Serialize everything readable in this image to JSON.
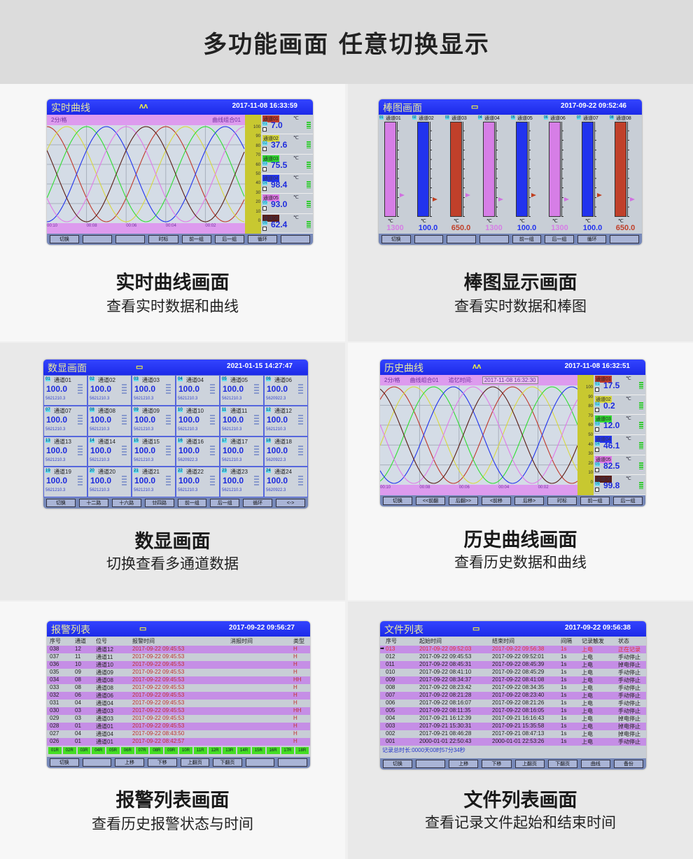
{
  "header": {
    "title": "多功能画面  任意切换显示"
  },
  "panels": [
    {
      "type": "trend",
      "caption": "实时曲线画面",
      "subtitle": "查看实时数据和曲线",
      "title": "实时曲线",
      "datetime": "2017-11-08 16:33:59",
      "icon": "wave-icon",
      "info": [
        "2分/格",
        "曲线组合01"
      ],
      "time_labels": [
        "00:10",
        "00:08",
        "00:06",
        "00:04",
        "00:02"
      ],
      "scale": [
        "100",
        "90",
        "80",
        "70",
        "60",
        "50",
        "40",
        "30",
        "20",
        "10",
        "0"
      ],
      "channels": [
        {
          "name": "通道01",
          "num": "01",
          "value": "7.0",
          "unit": "℃",
          "color": "#c0392b"
        },
        {
          "name": "通道02",
          "num": "02",
          "value": "37.6",
          "unit": "℃",
          "color": "#d8d840"
        },
        {
          "name": "通道03",
          "num": "03",
          "value": "75.5",
          "unit": "℃",
          "color": "#33dd33"
        },
        {
          "name": "通道04",
          "num": "04",
          "value": "98.4",
          "unit": "℃",
          "color": "#2233ee"
        },
        {
          "name": "通道05",
          "num": "05",
          "value": "93.0",
          "unit": "℃",
          "color": "#e07ae8"
        },
        {
          "name": "通道06",
          "num": "06",
          "value": "62.4",
          "unit": "℃",
          "color": "#5a1c14"
        }
      ],
      "buttons": [
        "切换",
        "",
        "",
        "时标",
        "前一组",
        "后一组",
        "循环",
        ""
      ]
    },
    {
      "type": "bar",
      "caption": "棒图显示画面",
      "subtitle": "查看实时数据和棒图",
      "title": "棒图画面",
      "datetime": "2017-09-22 09:52:46",
      "icon": "keyboard-icon",
      "bars": [
        {
          "num": "01",
          "name": "通道01",
          "value": "1300",
          "unit": "℃",
          "color": "#d67ee6",
          "fill": 1
        },
        {
          "num": "02",
          "name": "通道02",
          "value": "100.0",
          "unit": "℃",
          "color": "#2233ee",
          "fill": 1
        },
        {
          "num": "03",
          "name": "通道03",
          "value": "650.0",
          "unit": "℃",
          "color": "#c0402a",
          "fill": 1
        },
        {
          "num": "04",
          "name": "通道04",
          "value": "1300",
          "unit": "℃",
          "color": "#d67ee6",
          "fill": 1
        },
        {
          "num": "05",
          "name": "通道05",
          "value": "100.0",
          "unit": "℃",
          "color": "#2233ee",
          "fill": 1
        },
        {
          "num": "06",
          "name": "通道06",
          "value": "1300",
          "unit": "℃",
          "color": "#d67ee6",
          "fill": 1
        },
        {
          "num": "07",
          "name": "通道07",
          "value": "100.0",
          "unit": "℃",
          "color": "#2233ee",
          "fill": 1
        },
        {
          "num": "08",
          "name": "通道08",
          "value": "650.0",
          "unit": "℃",
          "color": "#c0402a",
          "fill": 1
        }
      ],
      "buttons": [
        "切换",
        "",
        "",
        "",
        "前一组",
        "后一组",
        "循环",
        ""
      ]
    },
    {
      "type": "digital",
      "caption": "数显画面",
      "subtitle": "切换查看多通道数据",
      "title": "数显画面",
      "datetime": "2021-01-15 14:27:47",
      "icon": "keyboard-icon",
      "cells": [
        {
          "num": "01",
          "name": "通道01",
          "value": "100.0",
          "total": "5621210.3"
        },
        {
          "num": "02",
          "name": "通道02",
          "value": "100.0",
          "total": "5621210.3"
        },
        {
          "num": "03",
          "name": "通道03",
          "value": "100.0",
          "total": "5621210.3"
        },
        {
          "num": "04",
          "name": "通道04",
          "value": "100.0",
          "total": "5621210.3"
        },
        {
          "num": "05",
          "name": "通道05",
          "value": "100.0",
          "total": "5621210.3"
        },
        {
          "num": "06",
          "name": "通道06",
          "value": "100.0",
          "total": "5620922.3"
        },
        {
          "num": "07",
          "name": "通道07",
          "value": "100.0",
          "total": "5621210.3"
        },
        {
          "num": "08",
          "name": "通道08",
          "value": "100.0",
          "total": "5621210.3"
        },
        {
          "num": "09",
          "name": "通道09",
          "value": "100.0",
          "total": "5621210.3"
        },
        {
          "num": "10",
          "name": "通道10",
          "value": "100.0",
          "total": "5621210.3"
        },
        {
          "num": "11",
          "name": "通道11",
          "value": "100.0",
          "total": "5621210.3"
        },
        {
          "num": "12",
          "name": "通道12",
          "value": "100.0",
          "total": "5621210.3"
        },
        {
          "num": "13",
          "name": "通道13",
          "value": "100.0",
          "total": "5621210.3"
        },
        {
          "num": "14",
          "name": "通道14",
          "value": "100.0",
          "total": "5621210.3"
        },
        {
          "num": "15",
          "name": "通道15",
          "value": "100.0",
          "total": "5621210.3"
        },
        {
          "num": "16",
          "name": "通道16",
          "value": "100.0",
          "total": "5620922.3"
        },
        {
          "num": "17",
          "name": "通道17",
          "value": "100.0",
          "total": "5621210.3"
        },
        {
          "num": "18",
          "name": "通道18",
          "value": "100.0",
          "total": "5620922.3"
        },
        {
          "num": "19",
          "name": "通道19",
          "value": "100.0",
          "total": "5621210.3"
        },
        {
          "num": "20",
          "name": "通道20",
          "value": "100.0",
          "total": "5621210.3"
        },
        {
          "num": "21",
          "name": "通道21",
          "value": "100.0",
          "total": "5621210.3"
        },
        {
          "num": "22",
          "name": "通道22",
          "value": "100.0",
          "total": "5621210.3"
        },
        {
          "num": "23",
          "name": "通道23",
          "value": "100.0",
          "total": "5621210.3"
        },
        {
          "num": "24",
          "name": "通道24",
          "value": "100.0",
          "total": "5620922.3"
        }
      ],
      "buttons": [
        "切换",
        "十二路",
        "十六路",
        "廿四路",
        "前一组",
        "后一组",
        "循环",
        "<->"
      ]
    },
    {
      "type": "trend",
      "caption": "历史曲线画面",
      "subtitle": "查看历史数据和曲线",
      "title": "历史曲线",
      "datetime": "2017-11-08 16:32:51",
      "icon": "wave-icon",
      "info": [
        "2分/格",
        "曲线组合01",
        "追忆时间:",
        "2017-11-08  16:32:30"
      ],
      "time_labels": [
        "00:10",
        "00:08",
        "00:06",
        "00:04",
        "00:02"
      ],
      "scale": [
        "100",
        "90",
        "80",
        "70",
        "60",
        "50",
        "40",
        "30",
        "20",
        "10",
        "0"
      ],
      "channels": [
        {
          "name": "通道01",
          "num": "01",
          "value": "17.5",
          "unit": "℃",
          "color": "#c0392b"
        },
        {
          "name": "通道02",
          "num": "02",
          "value": "0.2",
          "unit": "℃",
          "color": "#d8d840"
        },
        {
          "name": "通道03",
          "num": "03",
          "value": "12.0",
          "unit": "℃",
          "color": "#33dd33"
        },
        {
          "name": "通道04",
          "num": "04",
          "value": "46.1",
          "unit": "℃",
          "color": "#2233ee"
        },
        {
          "name": "通道05",
          "num": "05",
          "value": "82.5",
          "unit": "℃",
          "color": "#e07ae8"
        },
        {
          "name": "通道06",
          "num": "06",
          "value": "99.8",
          "unit": "℃",
          "color": "#5a1c14"
        }
      ],
      "buttons": [
        "切换",
        "<<前翻",
        "后翻>>",
        "<前移",
        "后移>",
        "时标",
        "前一组",
        "后一组"
      ]
    },
    {
      "type": "alarm",
      "caption": "报警列表画面",
      "subtitle": "查看历史报警状态与时间",
      "title": "报警列表",
      "datetime": "2017-09-22 09:56:27",
      "icon": "keyboard-icon",
      "columns": [
        "序号",
        "通道",
        "位号",
        "报警时间",
        "消报时间",
        "类型"
      ],
      "rows": [
        [
          "038",
          "12",
          "通道12",
          "2017-09-22 09:45:53",
          "",
          "H"
        ],
        [
          "037",
          "11",
          "通道11",
          "2017-09-22 09:45:53",
          "",
          "H"
        ],
        [
          "036",
          "10",
          "通道10",
          "2017-09-22 09:45:53",
          "",
          "H"
        ],
        [
          "035",
          "09",
          "通道09",
          "2017-09-22 09:45:53",
          "",
          "H"
        ],
        [
          "034",
          "08",
          "通道08",
          "2017-09-22 09:45:53",
          "",
          "HH"
        ],
        [
          "033",
          "08",
          "通道08",
          "2017-09-22 09:45:53",
          "",
          "H"
        ],
        [
          "032",
          "06",
          "通道06",
          "2017-09-22 09:45:53",
          "",
          "H"
        ],
        [
          "031",
          "04",
          "通道04",
          "2017-09-22 09:45:53",
          "",
          "H"
        ],
        [
          "030",
          "03",
          "通道03",
          "2017-09-22 09:45:53",
          "",
          "HH"
        ],
        [
          "029",
          "03",
          "通道03",
          "2017-09-22 09:45:53",
          "",
          "H"
        ],
        [
          "028",
          "01",
          "通道01",
          "2017-09-22 09:45:53",
          "",
          "H"
        ],
        [
          "027",
          "04",
          "通道04",
          "2017-09-22 08:43:50",
          "",
          "H"
        ],
        [
          "026",
          "01",
          "通道01",
          "2017-09-22 08:42:57",
          "",
          "H"
        ]
      ],
      "relays": [
        "01R",
        "02R",
        "03R",
        "04R",
        "05R",
        "06R",
        "07R",
        "08R",
        "09R",
        "10R",
        "11R",
        "12R",
        "13R",
        "14R",
        "15R",
        "16R",
        "17R",
        "18R"
      ],
      "buttons": [
        "切换",
        "",
        "上移",
        "下移",
        "上翻页",
        "下翻页",
        "",
        ""
      ]
    },
    {
      "type": "file",
      "caption": "文件列表画面",
      "subtitle": "查看记录文件起始和结束时间",
      "title": "文件列表",
      "datetime": "2017-09-22 09:56:38",
      "icon": "keyboard-icon",
      "columns": [
        "序号",
        "起始时间",
        "结束时间",
        "间隔",
        "记录触发",
        "状态"
      ],
      "rows": [
        [
          "013",
          "2017-09-22 09:52:03",
          "2017-09-22 09:56:38",
          "1s",
          "上电",
          "正在记录"
        ],
        [
          "012",
          "2017-09-22 09:45:53",
          "2017-09-22 09:52:01",
          "1s",
          "上电",
          "手动停止"
        ],
        [
          "011",
          "2017-09-22 08:45:31",
          "2017-09-22 08:45:39",
          "1s",
          "上电",
          "掉电停止"
        ],
        [
          "010",
          "2017-09-22 08:41:10",
          "2017-09-22 08:45:29",
          "1s",
          "上电",
          "手动停止"
        ],
        [
          "009",
          "2017-09-22 08:34:37",
          "2017-09-22 08:41:08",
          "1s",
          "上电",
          "手动停止"
        ],
        [
          "008",
          "2017-09-22 08:23:42",
          "2017-09-22 08:34:35",
          "1s",
          "上电",
          "手动停止"
        ],
        [
          "007",
          "2017-09-22 08:21:28",
          "2017-09-22 08:23:40",
          "1s",
          "上电",
          "手动停止"
        ],
        [
          "006",
          "2017-09-22 08:16:07",
          "2017-09-22 08:21:26",
          "1s",
          "上电",
          "手动停止"
        ],
        [
          "005",
          "2017-09-22 08:11:35",
          "2017-09-22 08:16:05",
          "1s",
          "上电",
          "手动停止"
        ],
        [
          "004",
          "2017-09-21 16:12:39",
          "2017-09-21 16:16:43",
          "1s",
          "上电",
          "掉电停止"
        ],
        [
          "003",
          "2017-09-21 15:30:31",
          "2017-09-21 15:35:58",
          "1s",
          "上电",
          "掉电停止"
        ],
        [
          "002",
          "2017-09-21 08:46:28",
          "2017-09-21 08:47:13",
          "1s",
          "上电",
          "掉电停止"
        ],
        [
          "001",
          "2000-01-01 22:50:43",
          "2000-01-01 22:53:26",
          "1s",
          "上电",
          "手动停止"
        ]
      ],
      "summary": "记录总时长:0000天00时57分34秒",
      "buttons": [
        "切换",
        "",
        "上移",
        "下移",
        "上翻页",
        "下翻页",
        "曲线",
        "备份"
      ]
    }
  ]
}
